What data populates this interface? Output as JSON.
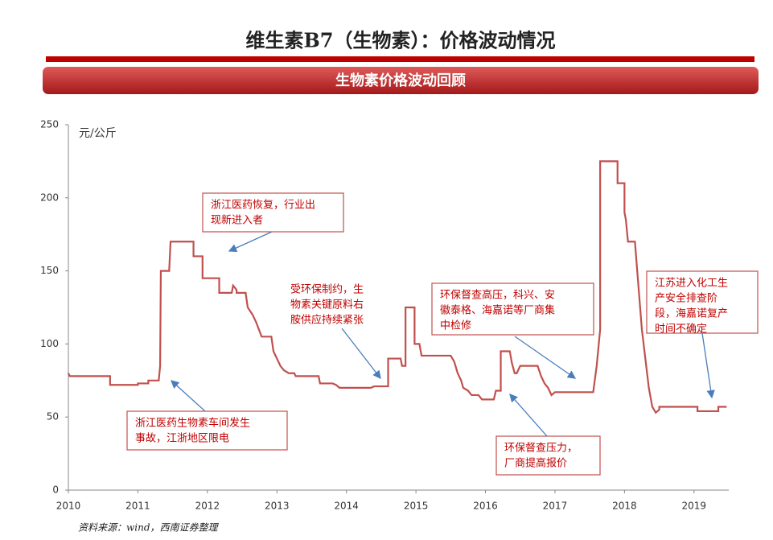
{
  "header": {
    "title": "维生素B7（生物素）：价格波动情况",
    "banner": "生物素价格波动回顾"
  },
  "chart_data": {
    "type": "line",
    "y_label": "元/公斤",
    "source": "资料来源：wind，西南证券整理",
    "xlim": [
      2010,
      2019.5
    ],
    "xticks": [
      2010,
      2011,
      2012,
      2013,
      2014,
      2015,
      2016,
      2017,
      2018,
      2019
    ],
    "ylim": [
      0,
      250
    ],
    "yticks": [
      0,
      50,
      100,
      150,
      200,
      250
    ],
    "grid": false,
    "series": [
      {
        "name": "生物素价格",
        "color": "#c0504d",
        "x": [
          2010.0,
          2010.02,
          2010.6,
          2010.6,
          2011.0,
          2011.0,
          2011.15,
          2011.15,
          2011.3,
          2011.32,
          2011.33,
          2011.45,
          2011.47,
          2011.8,
          2011.8,
          2011.93,
          2011.93,
          2012.17,
          2012.17,
          2012.35,
          2012.37,
          2012.42,
          2012.42,
          2012.55,
          2012.58,
          2012.65,
          2012.7,
          2012.78,
          2012.92,
          2012.95,
          2013.0,
          2013.05,
          2013.1,
          2013.17,
          2013.25,
          2013.27,
          2013.6,
          2013.62,
          2013.8,
          2013.85,
          2013.9,
          2014.35,
          2014.4,
          2014.6,
          2014.6,
          2014.78,
          2014.8,
          2014.85,
          2014.85,
          2014.98,
          2014.98,
          2015.05,
          2015.08,
          2015.5,
          2015.55,
          2015.6,
          2015.65,
          2015.68,
          2015.75,
          2015.8,
          2015.9,
          2015.95,
          2016.12,
          2016.15,
          2016.22,
          2016.22,
          2016.35,
          2016.38,
          2016.42,
          2016.45,
          2016.5,
          2016.75,
          2016.8,
          2016.85,
          2016.9,
          2016.95,
          2017.0,
          2017.55,
          2017.6,
          2017.65,
          2017.65,
          2017.9,
          2017.9,
          2018.0,
          2018.0,
          2018.02,
          2018.05,
          2018.15,
          2018.2,
          2018.25,
          2018.3,
          2018.35,
          2018.4,
          2018.45,
          2018.5,
          2018.5,
          2019.05,
          2019.05,
          2019.35,
          2019.35,
          2019.47
        ],
        "values": [
          80,
          78,
          78,
          72,
          72,
          73,
          73,
          75,
          75,
          85,
          150,
          150,
          170,
          170,
          160,
          160,
          145,
          145,
          135,
          135,
          140,
          137,
          135,
          135,
          125,
          120,
          115,
          105,
          105,
          95,
          90,
          85,
          82,
          80,
          80,
          78,
          78,
          73,
          73,
          72,
          70,
          70,
          71,
          71,
          90,
          90,
          85,
          85,
          125,
          125,
          100,
          100,
          92,
          92,
          88,
          80,
          75,
          70,
          68,
          65,
          65,
          62,
          62,
          68,
          68,
          95,
          95,
          87,
          80,
          80,
          85,
          85,
          78,
          73,
          70,
          65,
          67,
          67,
          85,
          110,
          225,
          225,
          210,
          210,
          190,
          185,
          170,
          170,
          140,
          110,
          90,
          70,
          57,
          53,
          55,
          57,
          57,
          54,
          54,
          57,
          57
        ]
      }
    ],
    "annotations": [
      {
        "text": [
          "浙江医药恢复，行业出",
          "现新进入者"
        ]
      },
      {
        "text": [
          "受环保制约，生",
          "物素关键原料右",
          "胺供应持续紧张"
        ]
      },
      {
        "text": [
          "环保督查高压，科兴、安",
          "徽泰格、海嘉诺等厂商集",
          "中检修"
        ]
      },
      {
        "text": [
          "江苏进入化工生",
          "产安全排查阶",
          "段，海嘉诺复产",
          "时间不确定"
        ]
      },
      {
        "text": [
          "浙江医药生物素车间发生",
          "事故，江浙地区限电"
        ]
      },
      {
        "text": [
          "环保督查压力，",
          "厂商提高报价"
        ]
      }
    ]
  }
}
